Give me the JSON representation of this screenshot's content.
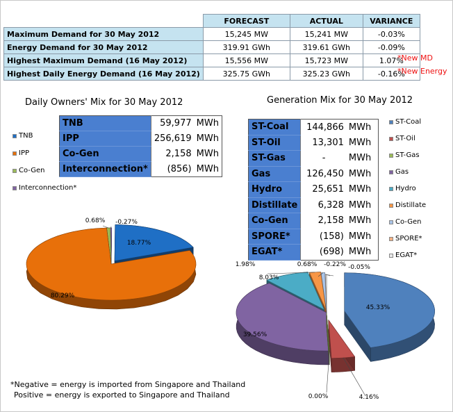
{
  "demand_table": {
    "headers": [
      "FORECAST",
      "ACTUAL",
      "VARIANCE"
    ],
    "rows": [
      {
        "label": "Maximum Demand for 30 May 2012",
        "forecast": "15,245 MW",
        "actual": "15,241 MW",
        "variance": "-0.03%",
        "note": ""
      },
      {
        "label": "Energy Demand for 30 May 2012",
        "forecast": "319.91 GWh",
        "actual": "319.61 GWh",
        "variance": "-0.09%",
        "note": ""
      },
      {
        "label": "Highest Maximum Demand (16 May 2012)",
        "forecast": "15,556 MW",
        "actual": "15,723 MW",
        "variance": "1.07%",
        "note": "*New MD"
      },
      {
        "label": "Highest Daily Energy Demand (16 May 2012)",
        "forecast": "325.75 GWh",
        "actual": "325.23 GWh",
        "variance": "-0.16%",
        "note": "*New Energy"
      }
    ]
  },
  "owners_mix": {
    "title": "Daily Owners' Mix for 30 May 2012",
    "unit": "MWh",
    "rows": [
      {
        "name": "TNB",
        "value": "59,977"
      },
      {
        "name": "IPP",
        "value": "256,619"
      },
      {
        "name": "Co-Gen",
        "value": "2,158"
      },
      {
        "name": "Interconnection*",
        "value": "(856)"
      }
    ],
    "legend": [
      {
        "name": "TNB",
        "color": "#1f6fc5"
      },
      {
        "name": "IPP",
        "color": "#e8700a"
      },
      {
        "name": "Co-Gen",
        "color": "#9bbb59"
      },
      {
        "name": "Interconnection*",
        "color": "#8064a2"
      }
    ]
  },
  "generation_mix": {
    "title": "Generation Mix for 30 May 2012",
    "unit": "MWh",
    "rows": [
      {
        "name": "ST-Coal",
        "value": "144,866"
      },
      {
        "name": "ST-Oil",
        "value": "13,301"
      },
      {
        "name": "ST-Gas",
        "value": "-"
      },
      {
        "name": "Gas",
        "value": "126,450"
      },
      {
        "name": "Hydro",
        "value": "25,651"
      },
      {
        "name": "Distillate",
        "value": "6,328"
      },
      {
        "name": "Co-Gen",
        "value": "2,158"
      },
      {
        "name": "SPORE*",
        "value": "(158)"
      },
      {
        "name": "EGAT*",
        "value": "(698)"
      }
    ],
    "legend": [
      {
        "name": "ST-Coal",
        "color": "#4f81bd"
      },
      {
        "name": "ST-Oil",
        "color": "#c0504d"
      },
      {
        "name": "ST-Gas",
        "color": "#9bbb59"
      },
      {
        "name": "Gas",
        "color": "#8064a2"
      },
      {
        "name": "Hydro",
        "color": "#4bacc6"
      },
      {
        "name": "Distillate",
        "color": "#f79646"
      },
      {
        "name": "Co-Gen",
        "color": "#a9c4e8"
      },
      {
        "name": "SPORE*",
        "color": "#f4b183"
      },
      {
        "name": "EGAT*",
        "color": "#e8e8e8"
      }
    ]
  },
  "chart_data": [
    {
      "type": "pie",
      "title": "Daily Owners' Mix for 30 May 2012",
      "categories": [
        "TNB",
        "IPP",
        "Co-Gen",
        "Interconnection*"
      ],
      "values": [
        18.77,
        80.29,
        0.68,
        -0.27
      ],
      "labels": [
        "18.77%",
        "80.29%",
        "0.68%",
        "-0.27%"
      ],
      "colors": [
        "#1f6fc5",
        "#e8700a",
        "#9bbb59",
        "#8064a2"
      ],
      "legend": "left"
    },
    {
      "type": "pie",
      "title": "Generation Mix for 30 May 2012",
      "categories": [
        "ST-Coal",
        "ST-Oil",
        "ST-Gas",
        "Gas",
        "Hydro",
        "Distillate",
        "Co-Gen",
        "SPORE*",
        "EGAT*"
      ],
      "values": [
        45.33,
        4.16,
        0.0,
        39.56,
        8.03,
        1.98,
        0.68,
        -0.05,
        -0.22
      ],
      "labels": [
        "45.33%",
        "4.16%",
        "0.00%",
        "39.56%",
        "8.03%",
        "1.98%",
        "0.68%",
        "-0.05%",
        "-0.22%"
      ],
      "colors": [
        "#4f81bd",
        "#c0504d",
        "#9bbb59",
        "#8064a2",
        "#4bacc6",
        "#f79646",
        "#a9c4e8",
        "#f4b183",
        "#e8e8e8"
      ],
      "legend": "right"
    }
  ],
  "footnote": {
    "line1": "*Negative = energy is imported from Singapore and Thailand",
    "line2": "Positive = energy is exported to Singapore and Thailand"
  }
}
